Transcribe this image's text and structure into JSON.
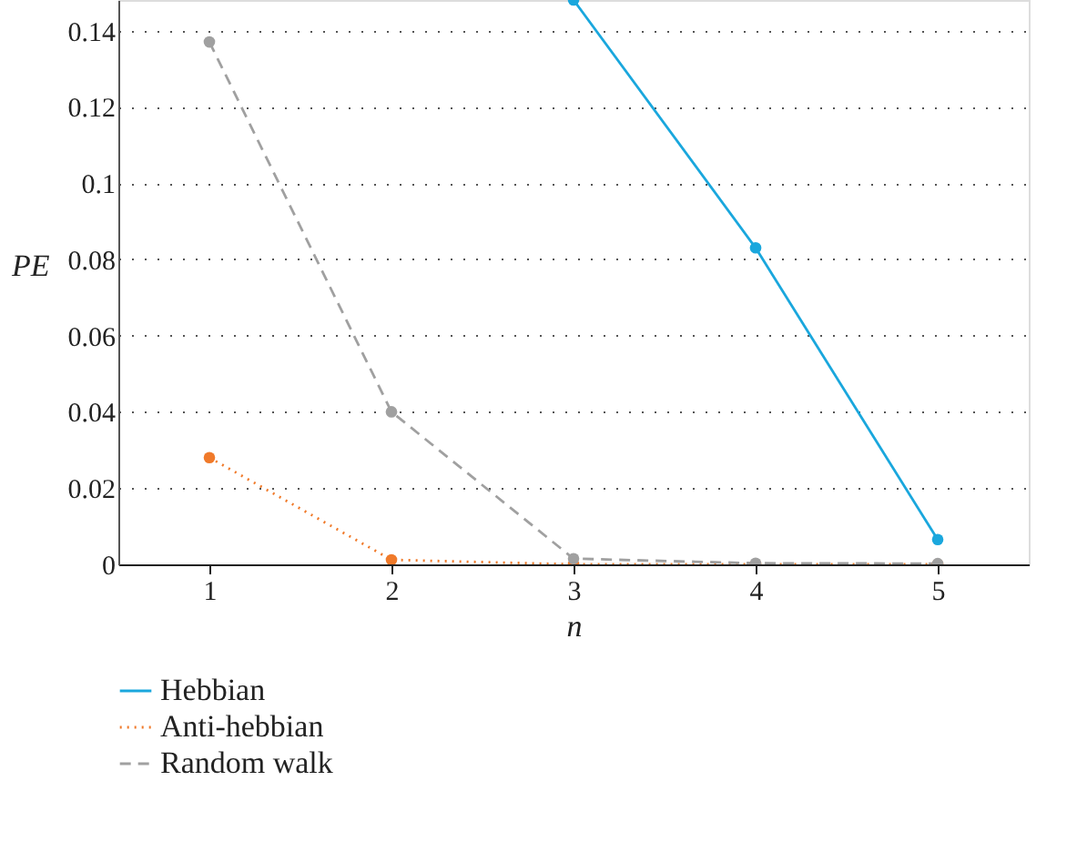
{
  "chart_data": {
    "type": "line",
    "xlabel": "n",
    "ylabel": "PE",
    "x": [
      1,
      2,
      3,
      4,
      5
    ],
    "series": [
      {
        "name": "Hebbian",
        "color": "#1aa7dd",
        "line_style": "solid",
        "values": [
          null,
          null,
          0.148,
          0.083,
          0.0065
        ]
      },
      {
        "name": "Anti-hebbian",
        "color": "#f07a2a",
        "line_style": "dotted",
        "values": [
          0.028,
          0.0012,
          0,
          0,
          0
        ]
      },
      {
        "name": "Random walk",
        "color": "#a0a0a0",
        "line_style": "dashed",
        "values": [
          0.137,
          0.04,
          0.0015,
          0.0003,
          0.0002
        ]
      }
    ],
    "xlim": [
      0.5,
      5.5
    ],
    "xticks": [
      1,
      2,
      3,
      4,
      5
    ],
    "ylim": [
      0,
      0.148
    ],
    "yticks": [
      0,
      0.02,
      0.04,
      0.06,
      0.08,
      0.1,
      0.12,
      0.14
    ],
    "grid": "y",
    "legend": "bottom left",
    "marker": "circle"
  }
}
